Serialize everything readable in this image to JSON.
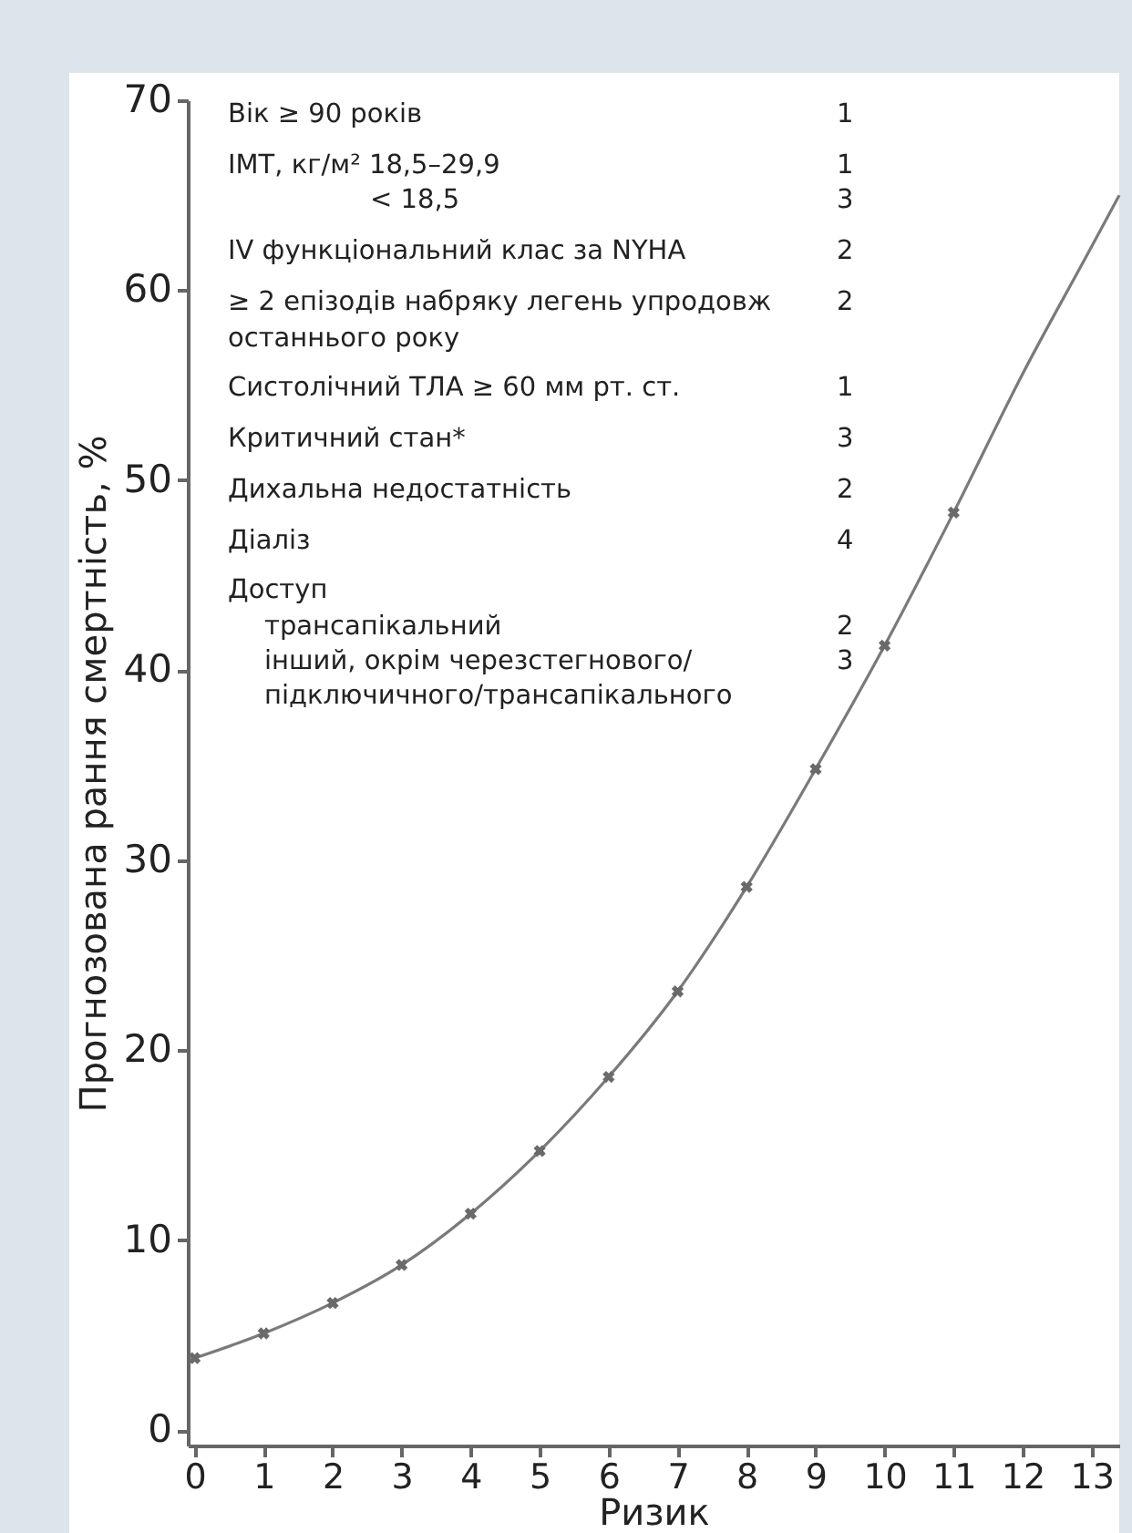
{
  "chart_data": {
    "type": "line",
    "xlabel": "Ризик",
    "ylabel": "Прогнозована рання смертність,  %",
    "xlim": [
      -0.1,
      13.4
    ],
    "ylim": [
      -0.8,
      70
    ],
    "xticks": [
      0,
      1,
      2,
      3,
      4,
      5,
      6,
      7,
      8,
      9,
      10,
      11,
      12,
      13
    ],
    "yticks": [
      0,
      10,
      20,
      30,
      40,
      50,
      60,
      70
    ],
    "grid": false,
    "line_style": "solid",
    "series": [
      {
        "color": "#7a7a7a",
        "marker": "none",
        "x": [
          0,
          1,
          2,
          3,
          4,
          5,
          6,
          7,
          8,
          9,
          10,
          11,
          12,
          13,
          13.4
        ],
        "values": [
          3.8,
          5.1,
          6.7,
          8.7,
          11.4,
          14.7,
          18.6,
          23.1,
          28.6,
          34.8,
          41.3,
          48.3,
          55.6,
          62.3,
          65
        ]
      },
      {
        "type": "scatter",
        "color": "#6a6a6a",
        "marker": "cross",
        "x": [
          0,
          1,
          2,
          3,
          4,
          5,
          6,
          7,
          8,
          9,
          10,
          11
        ],
        "values": [
          3.8,
          5.1,
          6.7,
          8.7,
          11.4,
          14.7,
          18.6,
          23.1,
          28.6,
          34.8,
          41.3,
          48.3
        ]
      }
    ],
    "annotations": [
      "Вік ≥ 90 років",
      "1",
      "ІМТ, кг/м² 18,5–29,9",
      "1",
      "< 18,5",
      "3",
      "IV функціональний клас за NYHA",
      "2",
      "≥ 2 епізодів набряку легень упродовж",
      "2",
      "останнього року",
      "Систолічний ТЛА ≥ 60 мм рт. ст.",
      "1",
      "Критичний стан*",
      "3",
      "Дихальна недостатність",
      "2",
      "Діаліз",
      "4",
      "Доступ",
      "трансапікальний",
      "2",
      "інший, окрім  черезстегнового/",
      "3",
      "підключичного/трансапікального"
    ]
  }
}
